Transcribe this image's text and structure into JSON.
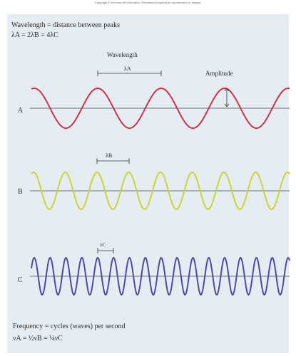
{
  "copyright": "Copyright © McGraw-Hill Education. Permission required for reproduction or display.",
  "header": {
    "line1": "Wavelength = distance between peaks",
    "line2": "λA = 2λB = 4λC"
  },
  "labels": {
    "wavelength": "Wavelength",
    "lambda_a": "λA",
    "amplitude": "Amplitude",
    "lambda_b": "λB",
    "lambda_c": "λC",
    "wave_a": "A",
    "wave_b": "B",
    "wave_c": "C"
  },
  "footer": {
    "line1": "Frequency = cycles (waves) per second",
    "line2": "νA = ½νB = ¼νC"
  },
  "colors": {
    "panel": "#e6edf2",
    "wave_a": "#c9334c",
    "wave_b": "#c7d43c",
    "wave_c": "#4f4aa6",
    "axis": "#7d8a94"
  }
}
